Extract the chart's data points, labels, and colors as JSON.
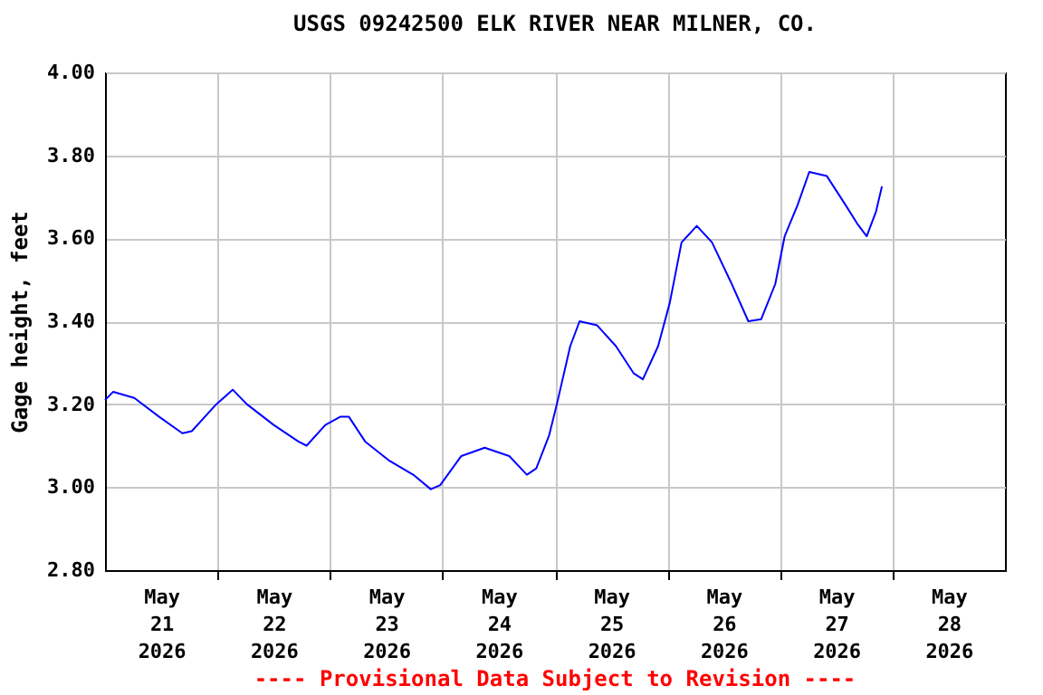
{
  "chart_data": {
    "type": "line",
    "title": "USGS 09242500 ELK RIVER NEAR MILNER, CO.",
    "ylabel": "Gage height, feet",
    "annotations": [
      "---- Provisional Data Subject to Revision ----"
    ],
    "x": [
      "2026-05-21T00:00",
      "2026-05-21T01:45",
      "2026-05-21T06:15",
      "2026-05-21T11:30",
      "2026-05-21T16:30",
      "2026-05-21T18:30",
      "2026-05-21T23:45",
      "2026-05-22T03:15",
      "2026-05-22T06:15",
      "2026-05-22T12:00",
      "2026-05-22T17:15",
      "2026-05-22T19:00",
      "2026-05-22T23:00",
      "2026-05-23T02:15",
      "2026-05-23T04:00",
      "2026-05-23T07:30",
      "2026-05-23T12:30",
      "2026-05-23T17:45",
      "2026-05-23T21:30",
      "2026-05-23T23:30",
      "2026-05-24T04:00",
      "2026-05-24T09:00",
      "2026-05-24T14:15",
      "2026-05-24T18:00",
      "2026-05-24T20:00",
      "2026-05-24T22:45",
      "2026-05-25T00:30",
      "2026-05-25T03:15",
      "2026-05-25T05:15",
      "2026-05-25T09:00",
      "2026-05-25T13:00",
      "2026-05-25T16:45",
      "2026-05-25T18:45",
      "2026-05-25T22:00",
      "2026-05-26T00:30",
      "2026-05-26T03:00",
      "2026-05-26T06:15",
      "2026-05-26T09:30",
      "2026-05-26T13:30",
      "2026-05-26T17:15",
      "2026-05-26T20:00",
      "2026-05-26T23:00",
      "2026-05-27T01:00",
      "2026-05-27T03:45",
      "2026-05-27T06:15",
      "2026-05-27T10:00",
      "2026-05-27T14:00",
      "2026-05-27T16:30",
      "2026-05-27T18:30",
      "2026-05-27T20:30",
      "2026-05-27T21:45"
    ],
    "series": [
      {
        "color": "#0000ff",
        "values": [
          3.21,
          3.23,
          3.215,
          3.17,
          3.13,
          3.135,
          3.2,
          3.235,
          3.2,
          3.15,
          3.11,
          3.1,
          3.15,
          3.17,
          3.17,
          3.11,
          3.065,
          3.03,
          2.995,
          3.005,
          3.075,
          3.095,
          3.075,
          3.03,
          3.045,
          3.125,
          3.205,
          3.34,
          3.4,
          3.39,
          3.34,
          3.275,
          3.26,
          3.34,
          3.445,
          3.59,
          3.63,
          3.59,
          3.495,
          3.4,
          3.405,
          3.49,
          3.605,
          3.68,
          3.76,
          3.75,
          3.68,
          3.635,
          3.605,
          3.665,
          3.725
        ]
      }
    ],
    "xlim": [
      "2026-05-21T00:00",
      "2026-05-29T00:00"
    ],
    "xticks": [
      {
        "value": "2026-05-21T12:00",
        "label": "May 21 2026"
      },
      {
        "value": "2026-05-22T00:00",
        "label": null
      },
      {
        "value": "2026-05-22T12:00",
        "label": "May 22 2026"
      },
      {
        "value": "2026-05-23T00:00",
        "label": null
      },
      {
        "value": "2026-05-23T12:00",
        "label": "May 23 2026"
      },
      {
        "value": "2026-05-24T00:00",
        "label": null
      },
      {
        "value": "2026-05-24T12:00",
        "label": "May 24 2026"
      },
      {
        "value": "2026-05-25T00:00",
        "label": null
      },
      {
        "value": "2026-05-25T12:00",
        "label": "May 25 2026"
      },
      {
        "value": "2026-05-26T00:00",
        "label": null
      },
      {
        "value": "2026-05-26T12:00",
        "label": "May 26 2026"
      },
      {
        "value": "2026-05-27T00:00",
        "label": null
      },
      {
        "value": "2026-05-27T12:00",
        "label": "May 27 2026"
      },
      {
        "value": "2026-05-28T00:00",
        "label": null
      },
      {
        "value": "2026-05-28T12:00",
        "label": "May 28 2026"
      }
    ],
    "ylim": [
      2.8,
      4.0
    ],
    "yticks": [
      {
        "value": 2.8,
        "label": "2.80"
      },
      {
        "value": 3.0,
        "label": "3.00"
      },
      {
        "value": 3.2,
        "label": "3.20"
      },
      {
        "value": 3.4,
        "label": "3.40"
      },
      {
        "value": 3.6,
        "label": "3.60"
      },
      {
        "value": 3.8,
        "label": "3.80"
      },
      {
        "value": 4.0,
        "label": "4.00"
      }
    ],
    "grid": true
  }
}
